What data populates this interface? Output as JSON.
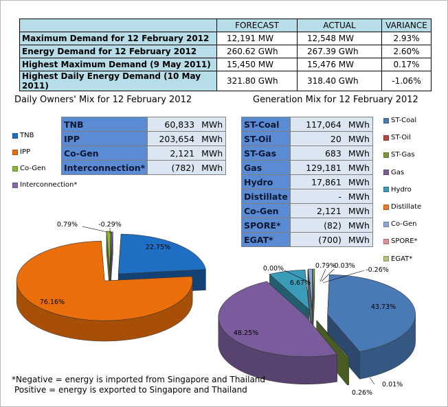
{
  "summary": {
    "headers": [
      "",
      "FORECAST",
      "ACTUAL",
      "VARIANCE"
    ],
    "rows": [
      {
        "label": "Maximum Demand for 12 February 2012",
        "forecast": "12,191  MW",
        "actual": "12,548  MW",
        "variance": "2.93%"
      },
      {
        "label": "Energy Demand for 12 February 2012",
        "forecast": "260.62  GWh",
        "actual": "267.39  GWh",
        "variance": "2.60%"
      },
      {
        "label": "Highest Maximum Demand (9 May 2011)",
        "forecast": "15,450  MW",
        "actual": "15,476  MW",
        "variance": "0.17%"
      },
      {
        "label": "Highest Daily Energy Demand (10 May 2011)",
        "forecast": "321.80  GWh",
        "actual": "318.40  GWh",
        "variance": "-1.06%"
      }
    ]
  },
  "chart_data": [
    {
      "type": "pie",
      "title": "Daily Owners' Mix for 12 February 2012",
      "unit": "MWh",
      "categories": [
        "TNB",
        "IPP",
        "Co-Gen",
        "Interconnection*"
      ],
      "value_labels": [
        "60,833",
        "203,654",
        "2,121",
        "(782)"
      ],
      "values": [
        60833,
        203654,
        2121,
        -782
      ],
      "percent_labels": [
        "22.75%",
        "76.16%",
        "0.79%",
        "-0.29%"
      ],
      "colors": [
        "#1f6fc4",
        "#ea6e0a",
        "#8db53a",
        "#8668ae"
      ]
    },
    {
      "type": "pie",
      "title": "Generation Mix for 12 February 2012",
      "unit": "MWh",
      "categories": [
        "ST-Coal",
        "ST-Oil",
        "ST-Gas",
        "Gas",
        "Hydro",
        "Distillate",
        "Co-Gen",
        "SPORE*",
        "EGAT*"
      ],
      "value_labels": [
        "117,064",
        "20",
        "683",
        "129,181",
        "17,861",
        "-",
        "2,121",
        "(82)",
        "(700)"
      ],
      "values": [
        117064,
        20,
        683,
        129181,
        17861,
        0,
        2121,
        -82,
        -700
      ],
      "percent_labels": [
        "43.73%",
        "0.01%",
        "0.26%",
        "48.25%",
        "6.67%",
        "0.00%",
        "0.79%",
        "-0.03%",
        "-0.26%"
      ],
      "colors": [
        "#4a7ab5",
        "#b8463f",
        "#7a9a3a",
        "#7a5b9c",
        "#3a9cb8",
        "#ec7a2a",
        "#86a8d4",
        "#dc9490",
        "#b2c47c"
      ]
    }
  ],
  "notes": [
    "*Negative = energy is imported from Singapore and Thailand",
    "Positive = energy is exported to Singapore and Thailand"
  ]
}
